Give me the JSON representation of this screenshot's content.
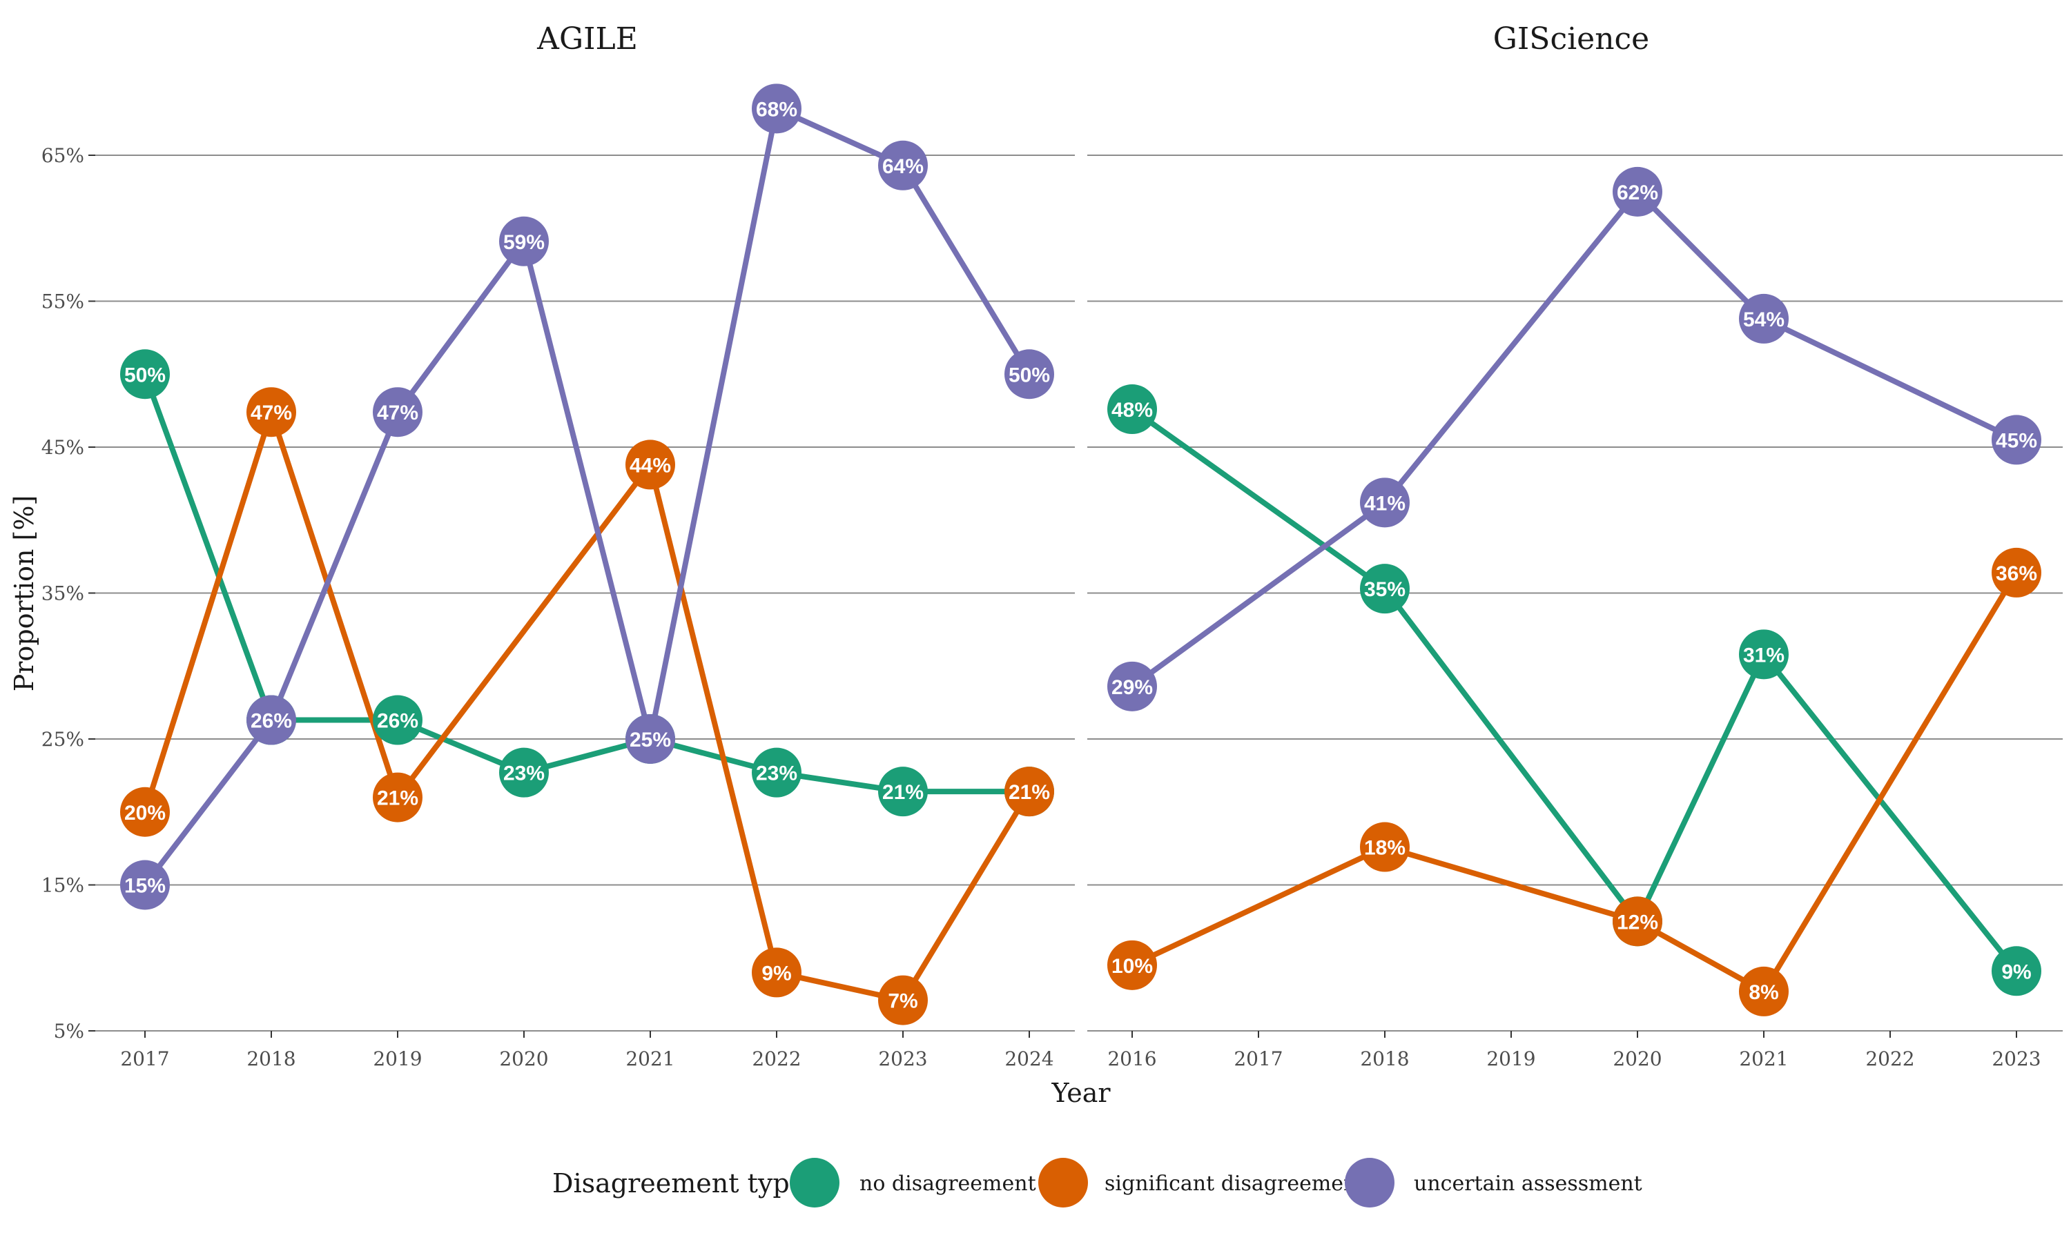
{
  "chart_data": {
    "type": "line",
    "ylabel": "Proportion [%]",
    "xlabel": "Year",
    "ylim": [
      5,
      69
    ],
    "yticks": [
      5,
      15,
      25,
      35,
      45,
      55,
      65
    ],
    "ytick_labels": [
      "5%",
      "15%",
      "25%",
      "35%",
      "45%",
      "55%",
      "65%"
    ],
    "grid": "horizontal",
    "legend": {
      "title": "Disagreement type",
      "position": "bottom"
    },
    "colors": {
      "no disagreement": "#1b9e77",
      "significant disagreement": "#d95f02",
      "uncertain assessment": "#7570b3"
    },
    "panels": [
      {
        "title": "AGILE",
        "x": [
          2017,
          2018,
          2019,
          2020,
          2021,
          2022,
          2023,
          2024
        ],
        "series": [
          {
            "name": "no disagreement",
            "points": [
              [
                2017,
                50,
                "50%"
              ],
              [
                2018,
                26.3,
                "26%"
              ],
              [
                2019,
                26.3,
                "26%"
              ],
              [
                2020,
                22.7,
                "23%"
              ],
              [
                2021,
                25,
                "25%"
              ],
              [
                2022,
                22.7,
                "23%"
              ],
              [
                2023,
                21.4,
                "21%"
              ],
              [
                2024,
                21.4,
                ""
              ]
            ]
          },
          {
            "name": "significant disagreement",
            "points": [
              [
                2017,
                20,
                "20%"
              ],
              [
                2018,
                47.4,
                "47%"
              ],
              [
                2019,
                21,
                "21%"
              ],
              [
                2021,
                43.8,
                "44%"
              ],
              [
                2022,
                9,
                "9%"
              ],
              [
                2023,
                7.1,
                "7%"
              ],
              [
                2024,
                21.4,
                "21%"
              ]
            ]
          },
          {
            "name": "uncertain assessment",
            "points": [
              [
                2017,
                15,
                "15%"
              ],
              [
                2018,
                26.3,
                "26%"
              ],
              [
                2019,
                47.4,
                "47%"
              ],
              [
                2020,
                59.1,
                "59%"
              ],
              [
                2021,
                25,
                "25%"
              ],
              [
                2022,
                68.2,
                "68%"
              ],
              [
                2023,
                64.3,
                "64%"
              ],
              [
                2024,
                50,
                "50%"
              ]
            ]
          }
        ]
      },
      {
        "title": "GIScience",
        "x": [
          2016,
          2017,
          2018,
          2019,
          2020,
          2021,
          2022,
          2023
        ],
        "series": [
          {
            "name": "no disagreement",
            "points": [
              [
                2016,
                47.6,
                "48%"
              ],
              [
                2018,
                35.3,
                "35%"
              ],
              [
                2020,
                12.5,
                ""
              ],
              [
                2021,
                30.8,
                "31%"
              ],
              [
                2023,
                9.1,
                "9%"
              ]
            ]
          },
          {
            "name": "significant disagreement",
            "points": [
              [
                2016,
                9.5,
                "10%"
              ],
              [
                2018,
                17.6,
                "18%"
              ],
              [
                2020,
                12.5,
                "12%"
              ],
              [
                2021,
                7.7,
                "8%"
              ],
              [
                2023,
                36.4,
                "36%"
              ]
            ]
          },
          {
            "name": "uncertain assessment",
            "points": [
              [
                2016,
                28.6,
                "29%"
              ],
              [
                2018,
                41.2,
                "41%"
              ],
              [
                2020,
                62.5,
                "62%"
              ],
              [
                2021,
                53.8,
                "54%"
              ],
              [
                2023,
                45.5,
                "45%"
              ]
            ]
          }
        ]
      }
    ]
  }
}
